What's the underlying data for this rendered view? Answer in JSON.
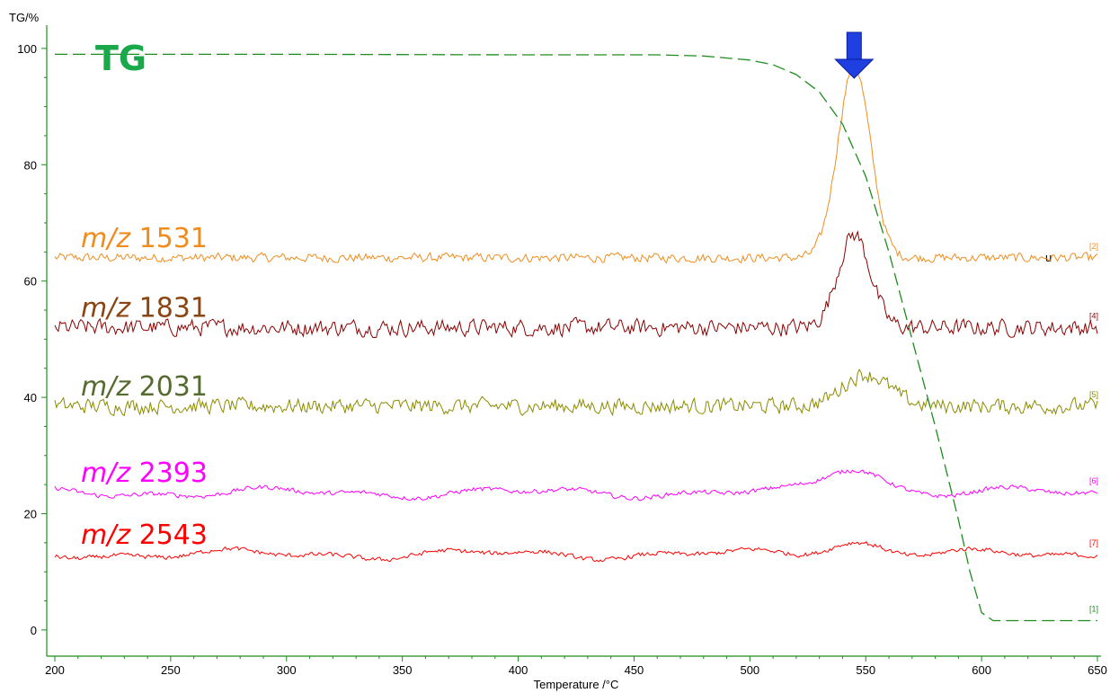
{
  "chart_data": {
    "type": "line",
    "ylabel": "TG/%",
    "xlabel": "Temperature /°C",
    "xlim": [
      200,
      650
    ],
    "ylim": [
      -4.5,
      104
    ],
    "x_ticks": [
      200,
      250,
      300,
      350,
      400,
      450,
      500,
      550,
      600,
      650
    ],
    "y_ticks": [
      0,
      20,
      40,
      60,
      80,
      100
    ],
    "arrow_at": 545,
    "stray_mark": "u",
    "tg_label": "TG",
    "tg_series": {
      "name": "TG",
      "curve_number": "[1]",
      "color": "#1e8c1e",
      "style": "dashed",
      "points": [
        [
          200,
          99.0
        ],
        [
          300,
          99.0
        ],
        [
          400,
          98.9
        ],
        [
          460,
          98.9
        ],
        [
          480,
          98.7
        ],
        [
          500,
          98.0
        ],
        [
          510,
          97.2
        ],
        [
          520,
          95.5
        ],
        [
          530,
          92.5
        ],
        [
          540,
          87.0
        ],
        [
          550,
          78.0
        ],
        [
          560,
          65.0
        ],
        [
          570,
          50.0
        ],
        [
          580,
          35.0
        ],
        [
          590,
          19.0
        ],
        [
          595,
          10.0
        ],
        [
          600,
          3.0
        ],
        [
          605,
          1.6
        ],
        [
          650,
          1.6
        ]
      ]
    },
    "ms_series": [
      {
        "name_prefix": "m/z",
        "name_value": "1531",
        "curve_number": "[2]",
        "color": "#f08c1e",
        "label_color": "#f08c1e",
        "baseline": 64.0,
        "noise": 0.7,
        "peak_height": 33.0,
        "peak_center": 545,
        "peak_width": 7
      },
      {
        "name_prefix": "m/z",
        "name_value": "1831",
        "curve_number": "[4]",
        "color": "#8b0000",
        "label_color": "#8b4513",
        "baseline": 52.0,
        "noise": 1.3,
        "peak_height": 16.0,
        "peak_center": 545,
        "peak_width": 7
      },
      {
        "name_prefix": "m/z",
        "name_value": "2031",
        "curve_number": "[5]",
        "color": "#8b8b00",
        "label_color": "#556b2f",
        "baseline": 38.5,
        "noise": 1.2,
        "peak_height": 5.5,
        "peak_center": 550,
        "peak_width": 10
      },
      {
        "name_prefix": "m/z",
        "name_value": "2393",
        "curve_number": "[6]",
        "color": "#ff00ff",
        "label_color": "#ff00ff",
        "baseline": 23.6,
        "noise": 0.35,
        "peak_height": 4.5,
        "peak_center": 545,
        "peak_width": 12
      },
      {
        "name_prefix": "m/z",
        "name_value": "2543",
        "curve_number": "[7]",
        "color": "#ff0000",
        "label_color": "#ff0000",
        "baseline": 13.0,
        "noise": 0.35,
        "peak_height": 2.3,
        "peak_center": 545,
        "peak_width": 12
      }
    ]
  }
}
